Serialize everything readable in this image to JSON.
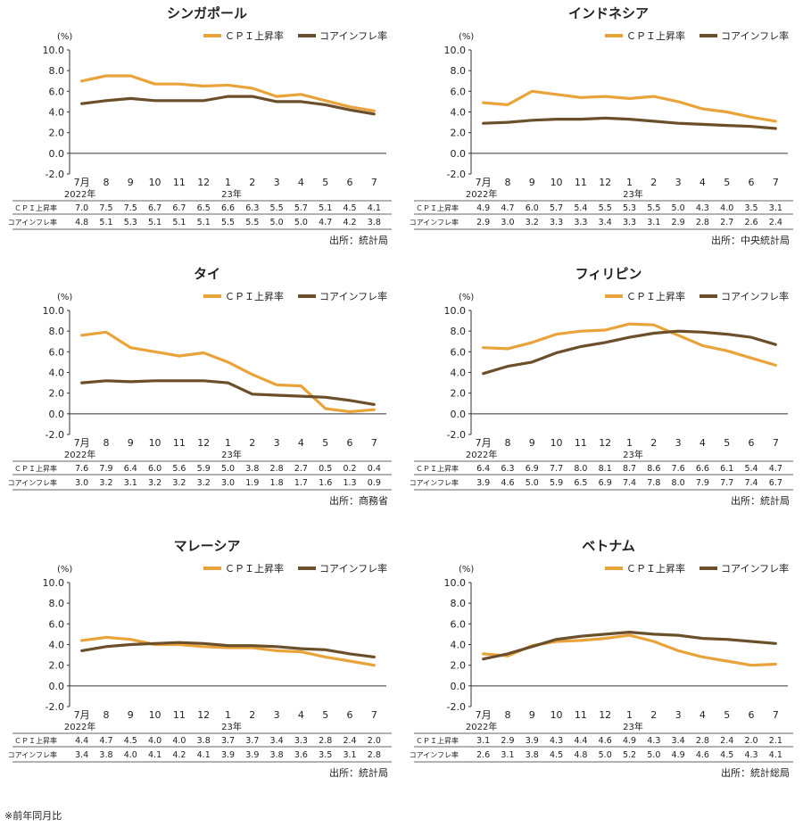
{
  "colors": {
    "cpi": "#E8A33A",
    "core": "#6B4F2A",
    "axis": "#333333",
    "text": "#222222"
  },
  "unit": "(%)",
  "footnote": "※前年同月比",
  "legend": {
    "cpi": "ＣＰＩ上昇率",
    "core": "コアインフレ率"
  },
  "row_labels": {
    "cpi": "ＣＰＩ上昇率",
    "core": "コアインフレ率"
  },
  "chart_data": [
    {
      "type": "line",
      "title": "シンガポール",
      "categories": [
        "7月",
        "8",
        "9",
        "10",
        "11",
        "12",
        "1",
        "2",
        "3",
        "4",
        "5",
        "6",
        "7"
      ],
      "year_labels": {
        "0": "2022年",
        "6": "23年"
      },
      "ylim": [
        -2,
        10
      ],
      "yticks": [
        "10.0",
        "8.0",
        "6.0",
        "4.0",
        "2.0",
        "0.0",
        "-2.0"
      ],
      "series": [
        {
          "name": "ＣＰＩ上昇率",
          "values": [
            7.0,
            7.5,
            7.5,
            6.7,
            6.7,
            6.5,
            6.6,
            6.3,
            5.5,
            5.7,
            5.1,
            4.5,
            4.1
          ]
        },
        {
          "name": "コアインフレ率",
          "values": [
            4.8,
            5.1,
            5.3,
            5.1,
            5.1,
            5.1,
            5.5,
            5.5,
            5.0,
            5.0,
            4.7,
            4.2,
            3.8
          ]
        }
      ],
      "source": "出所：統計局"
    },
    {
      "type": "line",
      "title": "インドネシア",
      "categories": [
        "7月",
        "8",
        "9",
        "10",
        "11",
        "12",
        "1",
        "2",
        "3",
        "4",
        "5",
        "6",
        "7"
      ],
      "year_labels": {
        "0": "2022年",
        "6": "23年"
      },
      "ylim": [
        -2,
        10
      ],
      "yticks": [
        "10.0",
        "8.0",
        "6.0",
        "4.0",
        "2.0",
        "0.0",
        "-2.0"
      ],
      "series": [
        {
          "name": "ＣＰＩ上昇率",
          "values": [
            4.9,
            4.7,
            6.0,
            5.7,
            5.4,
            5.5,
            5.3,
            5.5,
            5.0,
            4.3,
            4.0,
            3.5,
            3.1
          ]
        },
        {
          "name": "コアインフレ率",
          "values": [
            2.9,
            3.0,
            3.2,
            3.3,
            3.3,
            3.4,
            3.3,
            3.1,
            2.9,
            2.8,
            2.7,
            2.6,
            2.4
          ]
        }
      ],
      "source": "出所：中央統計局"
    },
    {
      "type": "line",
      "title": "タイ",
      "categories": [
        "7月",
        "8",
        "9",
        "10",
        "11",
        "12",
        "1",
        "2",
        "3",
        "4",
        "5",
        "6",
        "7"
      ],
      "year_labels": {
        "0": "2022年",
        "6": "23年"
      },
      "ylim": [
        -2,
        10
      ],
      "yticks": [
        "10.0",
        "8.0",
        "6.0",
        "4.0",
        "2.0",
        "0.0",
        "-2.0"
      ],
      "series": [
        {
          "name": "ＣＰＩ上昇率",
          "values": [
            7.6,
            7.9,
            6.4,
            6.0,
            5.6,
            5.9,
            5.0,
            3.8,
            2.8,
            2.7,
            0.5,
            0.2,
            0.4
          ]
        },
        {
          "name": "コアインフレ率",
          "values": [
            3.0,
            3.2,
            3.1,
            3.2,
            3.2,
            3.2,
            3.0,
            1.9,
            1.8,
            1.7,
            1.6,
            1.3,
            0.9
          ]
        }
      ],
      "source": "出所：商務省"
    },
    {
      "type": "line",
      "title": "フィリピン",
      "categories": [
        "7月",
        "8",
        "9",
        "10",
        "11",
        "12",
        "1",
        "2",
        "3",
        "4",
        "5",
        "6",
        "7"
      ],
      "year_labels": {
        "0": "2022年",
        "6": "23年"
      },
      "ylim": [
        -2,
        10
      ],
      "yticks": [
        "10.0",
        "8.0",
        "6.0",
        "4.0",
        "2.0",
        "0.0",
        "-2.0"
      ],
      "series": [
        {
          "name": "ＣＰＩ上昇率",
          "values": [
            6.4,
            6.3,
            6.9,
            7.7,
            8.0,
            8.1,
            8.7,
            8.6,
            7.6,
            6.6,
            6.1,
            5.4,
            4.7
          ]
        },
        {
          "name": "コアインフレ率",
          "values": [
            3.9,
            4.6,
            5.0,
            5.9,
            6.5,
            6.9,
            7.4,
            7.8,
            8.0,
            7.9,
            7.7,
            7.4,
            6.7
          ]
        }
      ],
      "source": "出所：統計局"
    },
    {
      "type": "line",
      "title": "マレーシア",
      "categories": [
        "7月",
        "8",
        "9",
        "10",
        "11",
        "12",
        "1",
        "2",
        "3",
        "4",
        "5",
        "6",
        "7"
      ],
      "year_labels": {
        "0": "2022年",
        "6": "23年"
      },
      "ylim": [
        -2,
        10
      ],
      "yticks": [
        "10.0",
        "8.0",
        "6.0",
        "4.0",
        "2.0",
        "0.0",
        "-2.0"
      ],
      "series": [
        {
          "name": "ＣＰＩ上昇率",
          "values": [
            4.4,
            4.7,
            4.5,
            4.0,
            4.0,
            3.8,
            3.7,
            3.7,
            3.4,
            3.3,
            2.8,
            2.4,
            2.0
          ]
        },
        {
          "name": "コアインフレ率",
          "values": [
            3.4,
            3.8,
            4.0,
            4.1,
            4.2,
            4.1,
            3.9,
            3.9,
            3.8,
            3.6,
            3.5,
            3.1,
            2.8
          ]
        }
      ],
      "source": "出所：統計局"
    },
    {
      "type": "line",
      "title": "ベトナム",
      "categories": [
        "7月",
        "8",
        "9",
        "10",
        "11",
        "12",
        "1",
        "2",
        "3",
        "4",
        "5",
        "6",
        "7"
      ],
      "year_labels": {
        "0": "2022年",
        "6": "23年"
      },
      "ylim": [
        -2,
        10
      ],
      "yticks": [
        "10.0",
        "8.0",
        "6.0",
        "4.0",
        "2.0",
        "0.0",
        "-2.0"
      ],
      "series": [
        {
          "name": "ＣＰＩ上昇率",
          "values": [
            3.1,
            2.9,
            3.9,
            4.3,
            4.4,
            4.6,
            4.9,
            4.3,
            3.4,
            2.8,
            2.4,
            2.0,
            2.1
          ]
        },
        {
          "name": "コアインフレ率",
          "values": [
            2.6,
            3.1,
            3.8,
            4.5,
            4.8,
            5.0,
            5.2,
            5.0,
            4.9,
            4.6,
            4.5,
            4.3,
            4.1
          ]
        }
      ],
      "source": "出所：統計総局"
    }
  ]
}
